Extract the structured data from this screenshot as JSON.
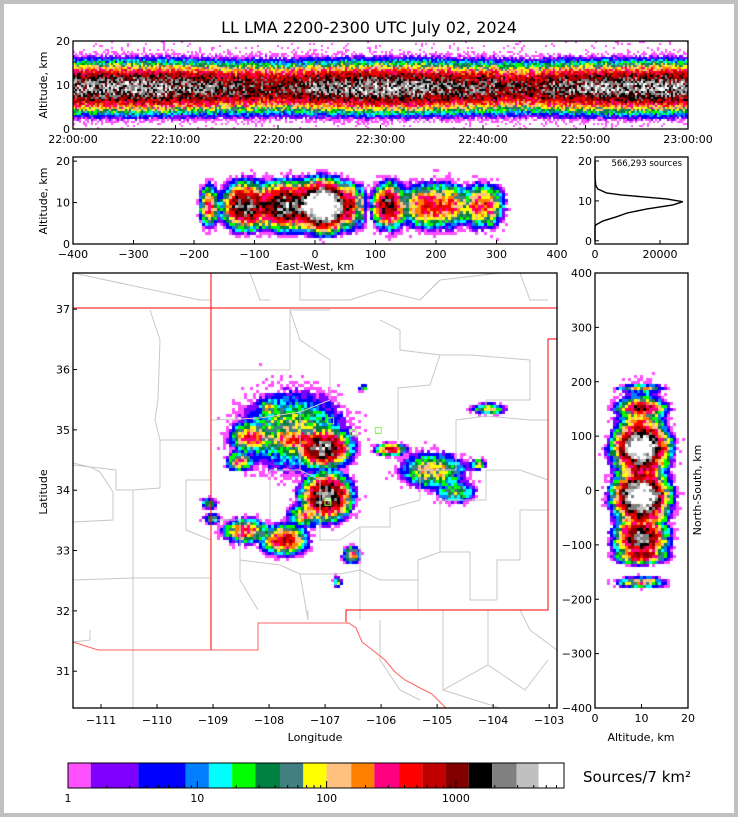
{
  "title": "LL LMA 2200-2300 UTC July 02, 2024",
  "time_height": {
    "ylabel": "Altitude, km",
    "yticks": [
      "0",
      "10",
      "20"
    ],
    "xticks": [
      "22:00:00",
      "22:10:00",
      "22:20:00",
      "22:30:00",
      "22:40:00",
      "22:50:00",
      "23:00:00"
    ],
    "xlim_minutes": [
      0,
      60
    ],
    "ylim": [
      0,
      20
    ]
  },
  "ew_height": {
    "ylabel": "Altitude, km",
    "xlabel": "East-West, km",
    "yticks": [
      "0",
      "10",
      "20"
    ],
    "xticks": [
      "−400",
      "−300",
      "−200",
      "−100",
      "0",
      "100",
      "200",
      "300",
      "400"
    ],
    "xlim": [
      -400,
      400
    ],
    "ylim": [
      0,
      20
    ]
  },
  "histogram": {
    "annotation": "566,293 sources",
    "yticks": [
      "0",
      "10",
      "20"
    ],
    "xticks": [
      "0",
      "20000"
    ],
    "xlim": [
      0,
      28600
    ],
    "ylim": [
      -0.8,
      21
    ],
    "profile_alt": [
      0,
      3.5,
      4,
      5,
      6,
      7,
      8,
      9,
      9.8,
      10.5,
      11,
      11.5,
      12,
      13,
      14,
      16,
      20
    ],
    "profile_count": [
      0,
      0,
      300,
      2500,
      6500,
      10000,
      16000,
      24000,
      27000,
      22000,
      15000,
      8000,
      3500,
      800,
      200,
      30,
      0
    ]
  },
  "map": {
    "xlabel": "Longitude",
    "ylabel": "Latitude",
    "xticks": [
      "−111",
      "−110",
      "−109",
      "−108",
      "−107",
      "−106",
      "−105",
      "−104",
      "−103"
    ],
    "yticks": [
      "31",
      "32",
      "33",
      "34",
      "35",
      "36",
      "37"
    ],
    "xlim": [
      -111.5,
      -102.86
    ],
    "ylim": [
      30.39,
      37.6
    ]
  },
  "ns_height": {
    "ylabel": "North-South, km",
    "xlabel": "Altitude, km",
    "yticks": [
      "−400",
      "−300",
      "−200",
      "−100",
      "0",
      "100",
      "200",
      "300",
      "400"
    ],
    "xticks": [
      "0",
      "10",
      "20"
    ],
    "ylim": [
      -400,
      400
    ],
    "xlim": [
      0,
      20
    ]
  },
  "cells": [
    {
      "lon": -107.05,
      "lat": 34.72,
      "peak": 3500,
      "sx": 0.22,
      "sy": 0.14
    },
    {
      "lon": -107.0,
      "lat": 33.92,
      "peak": 3500,
      "sx": 0.2,
      "sy": 0.18
    },
    {
      "lon": -107.55,
      "lat": 34.85,
      "peak": 400,
      "sx": 0.25,
      "sy": 0.08
    },
    {
      "lon": -108.35,
      "lat": 34.9,
      "peak": 400,
      "sx": 0.18,
      "sy": 0.12
    },
    {
      "lon": -108.55,
      "lat": 34.5,
      "peak": 250,
      "sx": 0.12,
      "sy": 0.08
    },
    {
      "lon": -108.05,
      "lat": 35.4,
      "peak": 200,
      "sx": 0.07,
      "sy": 0.07
    },
    {
      "lon": -107.75,
      "lat": 33.2,
      "peak": 700,
      "sx": 0.2,
      "sy": 0.12
    },
    {
      "lon": -108.45,
      "lat": 33.35,
      "peak": 350,
      "sx": 0.2,
      "sy": 0.1
    },
    {
      "lon": -107.4,
      "lat": 33.6,
      "peak": 150,
      "sx": 0.15,
      "sy": 0.1
    },
    {
      "lon": -106.55,
      "lat": 32.95,
      "peak": 300,
      "sx": 0.08,
      "sy": 0.07
    },
    {
      "lon": -105.85,
      "lat": 34.7,
      "peak": 500,
      "sx": 0.14,
      "sy": 0.05
    },
    {
      "lon": -105.1,
      "lat": 34.35,
      "peak": 150,
      "sx": 0.3,
      "sy": 0.15
    },
    {
      "lon": -104.1,
      "lat": 35.37,
      "peak": 90,
      "sx": 0.16,
      "sy": 0.05
    },
    {
      "lon": -104.3,
      "lat": 34.45,
      "peak": 90,
      "sx": 0.08,
      "sy": 0.05
    },
    {
      "lon": -109.1,
      "lat": 33.8,
      "peak": 60,
      "sx": 0.08,
      "sy": 0.05
    },
    {
      "lon": -109.05,
      "lat": 33.55,
      "peak": 60,
      "sx": 0.08,
      "sy": 0.05
    },
    {
      "lon": -107.6,
      "lat": 35.0,
      "peak": 80,
      "sx": 0.5,
      "sy": 0.35
    },
    {
      "lon": -106.8,
      "lat": 32.5,
      "peak": 50,
      "sx": 0.05,
      "sy": 0.05
    },
    {
      "lon": -104.7,
      "lat": 34.0,
      "peak": 60,
      "sx": 0.2,
      "sy": 0.1
    },
    {
      "lon": -106.35,
      "lat": 35.72,
      "peak": 40,
      "sx": 0.05,
      "sy": 0.03
    }
  ],
  "stations": [
    {
      "lon": -106.5,
      "lat": 34.95
    },
    {
      "lon": -106.05,
      "lat": 34.99
    },
    {
      "lon": -106.95,
      "lat": 33.8
    },
    {
      "lon": -106.9,
      "lat": 35.15
    }
  ],
  "colorbar": {
    "label": "Sources/7 km²",
    "tick_labels": [
      "1",
      "10",
      "100",
      "1000"
    ],
    "tick_values": [
      1,
      10,
      100,
      1000
    ],
    "levels": [
      1,
      1.5,
      3.5,
      8.1,
      12.3,
      18.6,
      28.2,
      43.6,
      66,
      100,
      155,
      234,
      363,
      550,
      832,
      1259,
      1905,
      2951,
      4365,
      6761
    ],
    "colors": [
      "#ff50ff",
      "#8000ff",
      "#0000ff",
      "#0080ff",
      "#00ffff",
      "#00ff00",
      "#008040",
      "#408080",
      "#ffff00",
      "#ffc080",
      "#ff8000",
      "#ff0080",
      "#ff0000",
      "#c00000",
      "#800000",
      "#000000",
      "#808080",
      "#c0c0c0",
      "#ffffff"
    ]
  },
  "colors": {
    "state_border": "#ff0000",
    "county_lines": "#c8c8c8",
    "station": "#80ff40"
  }
}
